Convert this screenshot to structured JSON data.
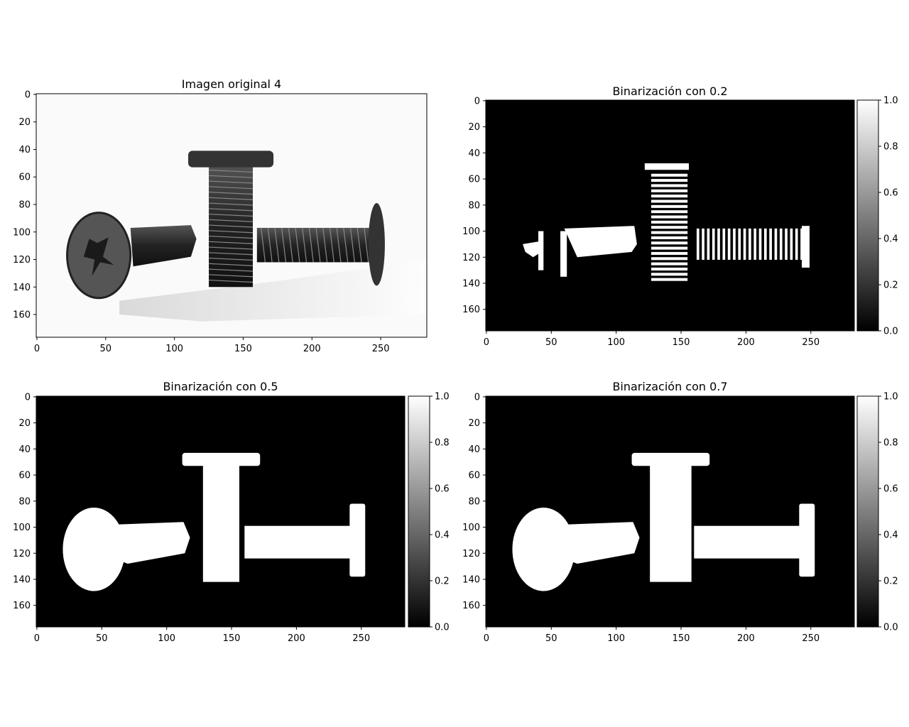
{
  "chart_data": [
    {
      "type": "image",
      "title": "Imagen original 4",
      "image_size": [
        284,
        177
      ],
      "x_ticks": [
        0,
        50,
        100,
        150,
        200,
        250
      ],
      "y_ticks": [
        0,
        20,
        40,
        60,
        80,
        100,
        120,
        140,
        160
      ],
      "colorbar": false,
      "content": "grayscale photo of three black screws on white background"
    },
    {
      "type": "image",
      "title": "Binarización con 0.2",
      "image_size": [
        284,
        177
      ],
      "x_ticks": [
        0,
        50,
        100,
        150,
        200,
        250
      ],
      "y_ticks": [
        0,
        20,
        40,
        60,
        80,
        100,
        120,
        140,
        160
      ],
      "colorbar": true,
      "colorbar_ticks": [
        "0.0",
        "0.2",
        "0.4",
        "0.6",
        "0.8",
        "1.0"
      ],
      "threshold": 0.2
    },
    {
      "type": "image",
      "title": "Binarización con 0.5",
      "image_size": [
        284,
        177
      ],
      "x_ticks": [
        0,
        50,
        100,
        150,
        200,
        250
      ],
      "y_ticks": [
        0,
        20,
        40,
        60,
        80,
        100,
        120,
        140,
        160
      ],
      "colorbar": true,
      "colorbar_ticks": [
        "0.0",
        "0.2",
        "0.4",
        "0.6",
        "0.8",
        "1.0"
      ],
      "threshold": 0.5
    },
    {
      "type": "image",
      "title": "Binarización con 0.7",
      "image_size": [
        284,
        177
      ],
      "x_ticks": [
        0,
        50,
        100,
        150,
        200,
        250
      ],
      "y_ticks": [
        0,
        20,
        40,
        60,
        80,
        100,
        120,
        140,
        160
      ],
      "colorbar": true,
      "colorbar_ticks": [
        "0.0",
        "0.2",
        "0.4",
        "0.6",
        "0.8",
        "1.0"
      ],
      "threshold": 0.7
    }
  ]
}
